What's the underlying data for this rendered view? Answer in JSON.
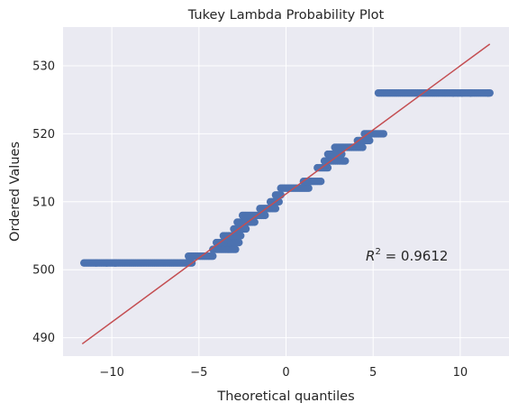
{
  "chart_data": {
    "type": "scatter",
    "title": "Tukey Lambda Probability Plot",
    "xlabel": "Theoretical quantiles",
    "ylabel": "Ordered Values",
    "xlim": [
      -12.8,
      12.8
    ],
    "ylim": [
      487.3,
      535.7
    ],
    "xticks": [
      -10,
      -5,
      0,
      5,
      10
    ],
    "xtick_labels": [
      "−10",
      "−5",
      "0",
      "5",
      "10"
    ],
    "yticks": [
      490,
      500,
      510,
      520,
      530
    ],
    "ytick_labels": [
      "490",
      "500",
      "510",
      "520",
      "530"
    ],
    "grid": true,
    "annotation": {
      "text_prefix": "R",
      "superscript": "2",
      "text_suffix": " = 0.9612"
    },
    "fit_line": {
      "x": [
        -11.7,
        11.7
      ],
      "y": [
        489.1,
        533.2
      ],
      "color": "#c44e52"
    },
    "points_color": "#4c72b0",
    "background": "#eaeaf2",
    "steps": [
      {
        "y": 501,
        "x_range": [
          -11.6,
          -5.4
        ],
        "outliers": [
          -10.9,
          -10.3,
          -9.8
        ]
      },
      {
        "y": 502,
        "x_range": [
          -5.6,
          -4.2
        ]
      },
      {
        "y": 503,
        "x_range": [
          -4.2,
          -2.9
        ]
      },
      {
        "y": 504,
        "x_range": [
          -4.0,
          -2.7
        ]
      },
      {
        "y": 505,
        "x_range": [
          -3.6,
          -2.6
        ]
      },
      {
        "y": 506,
        "x_range": [
          -3.0,
          -2.3
        ]
      },
      {
        "y": 507,
        "x_range": [
          -2.8,
          -1.8
        ]
      },
      {
        "y": 508,
        "x_range": [
          -2.5,
          -1.2
        ]
      },
      {
        "y": 509,
        "x_range": [
          -1.5,
          -0.6
        ]
      },
      {
        "y": 510,
        "x_range": [
          -0.9,
          -0.4
        ]
      },
      {
        "y": 511,
        "x_range": [
          -0.6,
          -0.3
        ]
      },
      {
        "y": 512,
        "x_range": [
          -0.3,
          1.3
        ]
      },
      {
        "y": 513,
        "x_range": [
          1.0,
          2.0
        ]
      },
      {
        "y": 515,
        "x_range": [
          1.8,
          2.4
        ]
      },
      {
        "y": 516,
        "x_range": [
          2.2,
          3.4
        ]
      },
      {
        "y": 517,
        "x_range": [
          2.4,
          3.2
        ]
      },
      {
        "y": 518,
        "x_range": [
          2.8,
          4.4
        ]
      },
      {
        "y": 519,
        "x_range": [
          4.1,
          4.8
        ]
      },
      {
        "y": 520,
        "x_range": [
          4.5,
          5.6
        ]
      },
      {
        "y": 526,
        "x_range": [
          5.3,
          11.7
        ],
        "outliers": [
          9.6,
          10.1,
          10.6,
          11.6
        ]
      }
    ]
  }
}
